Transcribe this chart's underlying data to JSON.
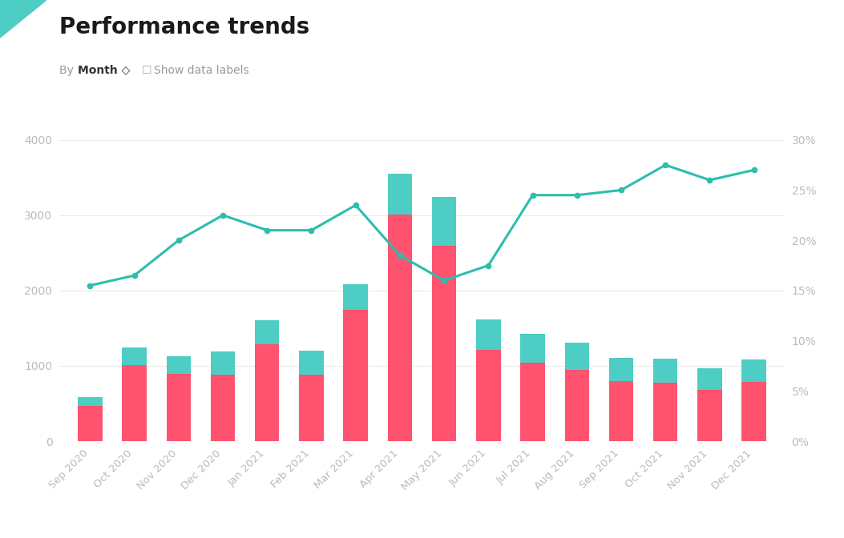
{
  "title": "Performance trends",
  "categories": [
    "Sep 2020",
    "Oct 2020",
    "Nov 2020",
    "Dec 2020",
    "Jan 2021",
    "Feb 2021",
    "Mar 2021",
    "Apr 2021",
    "May 2021",
    "Jun 2021",
    "Jul 2021",
    "Aug 2021",
    "Sep 2021",
    "Oct 2021",
    "Nov 2021",
    "Dec 2021"
  ],
  "canceled": [
    470,
    1010,
    890,
    880,
    1290,
    880,
    1740,
    3010,
    2590,
    1210,
    1040,
    950,
    800,
    780,
    680,
    790
  ],
  "watch_list": [
    0,
    0,
    0,
    0,
    0,
    0,
    0,
    0,
    0,
    0,
    0,
    0,
    0,
    0,
    0,
    0
  ],
  "saved": [
    120,
    230,
    240,
    310,
    320,
    320,
    340,
    540,
    650,
    410,
    380,
    360,
    310,
    310,
    290,
    290
  ],
  "save_rate_pct": [
    0.155,
    0.165,
    0.2,
    0.225,
    0.21,
    0.21,
    0.235,
    0.185,
    0.16,
    0.175,
    0.245,
    0.245,
    0.25,
    0.275,
    0.26,
    0.27
  ],
  "bar_color_canceled": "#FF5370",
  "bar_color_saved": "#4ECDC4",
  "bar_color_watchlist": "#F6C85F",
  "line_color": "#2DBDAD",
  "background_color": "#FFFFFF",
  "ylim_left": [
    0,
    4000
  ],
  "ylim_right": [
    0.0,
    0.3
  ],
  "right_axis_ticks": [
    0.0,
    0.05,
    0.1,
    0.15,
    0.2,
    0.25,
    0.3
  ],
  "right_axis_labels": [
    "0%",
    "5%",
    "10%",
    "15%",
    "20%",
    "25%",
    "30%"
  ],
  "left_axis_ticks": [
    0,
    1000,
    2000,
    3000,
    4000
  ],
  "grid_color": "#EBEBEB"
}
